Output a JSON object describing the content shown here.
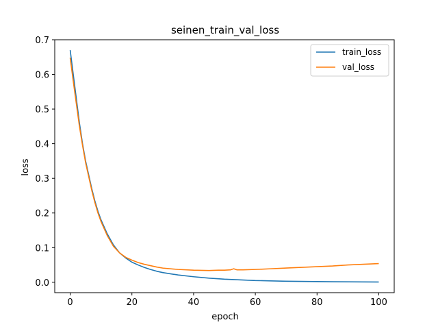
{
  "chart_data": {
    "type": "line",
    "title": "seinen_train_val_loss",
    "xlabel": "epoch",
    "ylabel": "loss",
    "xlim": [
      -5,
      105
    ],
    "ylim": [
      -0.03,
      0.7
    ],
    "xticks": [
      0,
      20,
      40,
      60,
      80,
      100
    ],
    "xtick_labels": [
      "0",
      "20",
      "40",
      "60",
      "80",
      "100"
    ],
    "yticks": [
      0.0,
      0.1,
      0.2,
      0.3,
      0.4,
      0.5,
      0.6,
      0.7
    ],
    "ytick_labels": [
      "0.0",
      "0.1",
      "0.2",
      "0.3",
      "0.4",
      "0.5",
      "0.6",
      "0.7"
    ],
    "grid": false,
    "legend": "top-right",
    "series": [
      {
        "name": "train_loss",
        "color": "#1f77b4",
        "x": [
          0,
          1,
          2,
          3,
          4,
          5,
          6,
          7,
          8,
          9,
          10,
          12,
          14,
          16,
          18,
          20,
          22,
          24,
          26,
          28,
          30,
          35,
          40,
          45,
          50,
          55,
          60,
          65,
          70,
          75,
          80,
          85,
          90,
          95,
          100
        ],
        "y": [
          0.67,
          0.6,
          0.53,
          0.46,
          0.4,
          0.35,
          0.31,
          0.27,
          0.235,
          0.205,
          0.18,
          0.14,
          0.108,
          0.085,
          0.07,
          0.058,
          0.05,
          0.043,
          0.037,
          0.032,
          0.028,
          0.021,
          0.016,
          0.012,
          0.009,
          0.007,
          0.005,
          0.004,
          0.003,
          0.0025,
          0.002,
          0.0015,
          0.0012,
          0.001,
          0.0008
        ]
      },
      {
        "name": "val_loss",
        "color": "#ff7f0e",
        "x": [
          0,
          1,
          2,
          3,
          4,
          5,
          6,
          7,
          8,
          9,
          10,
          12,
          14,
          16,
          18,
          20,
          22,
          24,
          26,
          28,
          30,
          35,
          40,
          45,
          48,
          50,
          52,
          53,
          54,
          56,
          60,
          65,
          70,
          75,
          80,
          85,
          90,
          95,
          100
        ],
        "y": [
          0.648,
          0.58,
          0.515,
          0.45,
          0.395,
          0.345,
          0.305,
          0.265,
          0.23,
          0.2,
          0.175,
          0.135,
          0.104,
          0.085,
          0.072,
          0.064,
          0.057,
          0.052,
          0.048,
          0.044,
          0.041,
          0.037,
          0.035,
          0.034,
          0.035,
          0.035,
          0.036,
          0.039,
          0.036,
          0.036,
          0.037,
          0.039,
          0.041,
          0.043,
          0.045,
          0.047,
          0.05,
          0.052,
          0.054
        ]
      }
    ]
  }
}
